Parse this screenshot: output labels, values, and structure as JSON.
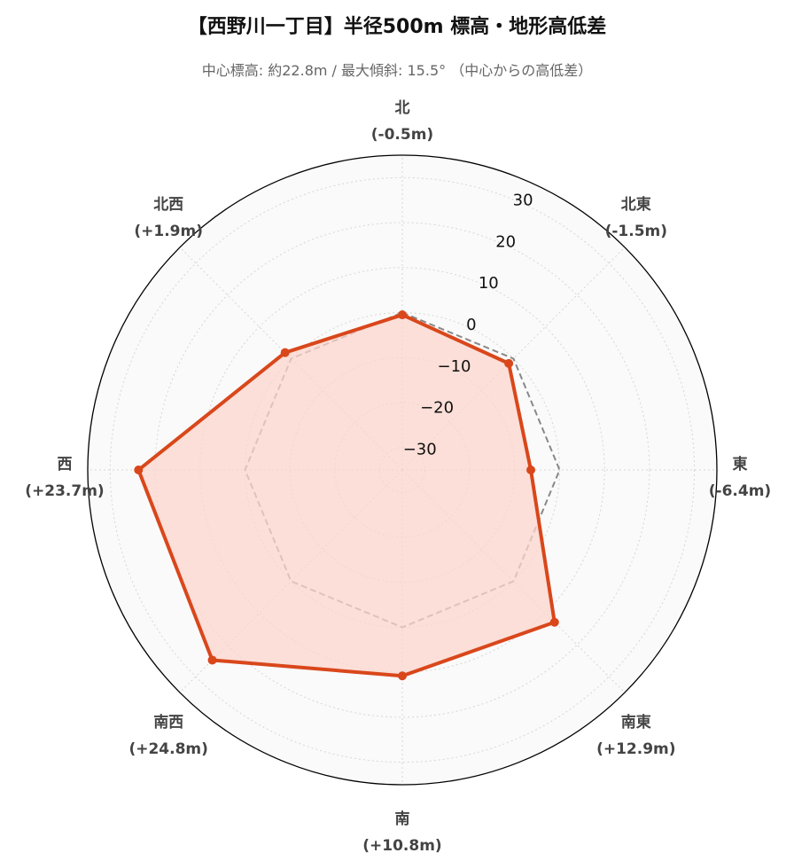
{
  "header": {
    "title": "【西野川一丁目】半径500m 標高・地形高低差",
    "subtitle": "中心標高: 約22.8m / 最大傾斜: 15.5° （中心からの高低差）"
  },
  "chart_data": {
    "type": "radar",
    "title": "【西野川一丁目】半径500m 標高・地形高低差",
    "subtitle": "中心標高: 約22.8m / 最大傾斜: 15.5° （中心からの高低差）",
    "categories": [
      "北",
      "北東",
      "東",
      "南東",
      "南",
      "南西",
      "西",
      "北西"
    ],
    "category_value_labels": [
      "(-0.5m)",
      "(-1.5m)",
      "(-6.4m)",
      "(+12.9m)",
      "(+10.8m)",
      "(+24.8m)",
      "(+23.7m)",
      "(+1.9m)"
    ],
    "series": [
      {
        "values": [
          -0.5,
          -1.5,
          -6.4,
          12.9,
          10.8,
          24.8,
          23.7,
          1.9
        ],
        "color": "#d9471b",
        "fill": "#fbd5cc"
      },
      {
        "values": [
          0,
          0,
          0,
          0,
          0,
          0,
          0,
          0
        ],
        "color": "#888888",
        "style": "dashed"
      }
    ],
    "rlim": [
      -35,
      35
    ],
    "rticks": [
      -30,
      -20,
      -10,
      0,
      10,
      20,
      30
    ],
    "rtick_labels": [
      "−30",
      "−20",
      "−10",
      "0",
      "10",
      "20",
      "30"
    ],
    "grid": true,
    "direction": "clockwise",
    "start": "north"
  }
}
